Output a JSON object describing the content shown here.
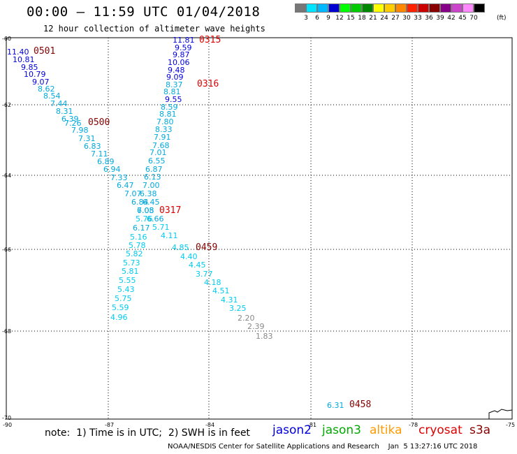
{
  "title": "00:00 – 11:59 UTC 01/04/2018",
  "subtitle": "12 hour collection of altimeter wave heights",
  "color_scale": {
    "colors": [
      "#777777",
      "#00e5ff",
      "#00b8ff",
      "#0000d0",
      "#00ff00",
      "#00cc00",
      "#008800",
      "#ffff00",
      "#ffcc00",
      "#ff8800",
      "#ff2200",
      "#cc0000",
      "#880000",
      "#880088",
      "#cc44cc",
      "#ff88ff",
      "#000000"
    ],
    "labels": [
      "3",
      "6",
      "9",
      "12",
      "15",
      "18",
      "21",
      "24",
      "27",
      "30",
      "33",
      "36",
      "39",
      "42",
      "45",
      "70"
    ],
    "unit": "(ft)"
  },
  "axes": {
    "lat_labels": [
      "-60",
      "-62",
      "-64",
      "-66",
      "-68",
      "-70"
    ],
    "lon_labels": [
      "-90",
      "-87",
      "-84",
      "-81",
      "-78",
      "-75"
    ]
  },
  "note": "note:  1) Time is in UTC;  2) SWH is in feet",
  "legend": [
    {
      "name": "jason2",
      "color": "#0000dd"
    },
    {
      "name": "jason3",
      "color": "#00aa00"
    },
    {
      "name": "altika",
      "color": "#ff9900"
    },
    {
      "name": "cryosat",
      "color": "#dd0000"
    },
    {
      "name": "s3a",
      "color": "#880000"
    }
  ],
  "footer": "NOAA/NESDIS Center for Satellite Applications and Research    Jan  5 13:27:16 UTC 2018",
  "time_labels": [
    {
      "text": "0501",
      "color": "#880000"
    },
    {
      "text": "0500",
      "color": "#880000"
    },
    {
      "text": "0315",
      "color": "#dd0000"
    },
    {
      "text": "0316",
      "color": "#dd0000"
    },
    {
      "text": "0317",
      "color": "#dd0000"
    },
    {
      "text": "0459",
      "color": "#880000"
    },
    {
      "text": "0458",
      "color": "#880000"
    }
  ],
  "observations": [
    {
      "v": "11.40",
      "c": "#0000dd"
    },
    {
      "v": "10.81",
      "c": "#0000dd"
    },
    {
      "v": "9.85",
      "c": "#0000dd"
    },
    {
      "v": "10.79",
      "c": "#0000dd"
    },
    {
      "v": "9.07",
      "c": "#0000dd"
    },
    {
      "v": "8.62",
      "c": "#00aadd"
    },
    {
      "v": "8.54",
      "c": "#00aadd"
    },
    {
      "v": "7.44",
      "c": "#00aadd"
    },
    {
      "v": "8.31",
      "c": "#00aadd"
    },
    {
      "v": "6.39",
      "c": "#00aadd"
    },
    {
      "v": "7.26",
      "c": "#00aadd"
    },
    {
      "v": "7.98",
      "c": "#00aadd"
    },
    {
      "v": "7.31",
      "c": "#00aadd"
    },
    {
      "v": "6.83",
      "c": "#00aadd"
    },
    {
      "v": "7.11",
      "c": "#00aadd"
    },
    {
      "v": "6.89",
      "c": "#00aadd"
    },
    {
      "v": "6.94",
      "c": "#00aadd"
    },
    {
      "v": "7.33",
      "c": "#00aadd"
    },
    {
      "v": "6.47",
      "c": "#00aadd"
    },
    {
      "v": "7.07",
      "c": "#00aadd"
    },
    {
      "v": "6.84",
      "c": "#00aadd"
    },
    {
      "v": "7.05",
      "c": "#00aadd"
    },
    {
      "v": "11.81",
      "c": "#0000dd"
    },
    {
      "v": "9.59",
      "c": "#0000dd"
    },
    {
      "v": "9.87",
      "c": "#0000dd"
    },
    {
      "v": "10.06",
      "c": "#0000dd"
    },
    {
      "v": "9.48",
      "c": "#0000dd"
    },
    {
      "v": "9.09",
      "c": "#0000dd"
    },
    {
      "v": "8.37",
      "c": "#00aadd"
    },
    {
      "v": "8.81",
      "c": "#00aadd"
    },
    {
      "v": "9.55",
      "c": "#0000dd"
    },
    {
      "v": "8.59",
      "c": "#00aadd"
    },
    {
      "v": "8.81",
      "c": "#00aadd"
    },
    {
      "v": "7.80",
      "c": "#00aadd"
    },
    {
      "v": "8.33",
      "c": "#00aadd"
    },
    {
      "v": "7.91",
      "c": "#00aadd"
    },
    {
      "v": "7.68",
      "c": "#00aadd"
    },
    {
      "v": "7.01",
      "c": "#00aadd"
    },
    {
      "v": "6.55",
      "c": "#00aadd"
    },
    {
      "v": "6.87",
      "c": "#00aadd"
    },
    {
      "v": "6.13",
      "c": "#00aadd"
    },
    {
      "v": "7.00",
      "c": "#00aadd"
    },
    {
      "v": "6.38",
      "c": "#00aadd"
    },
    {
      "v": "6.45",
      "c": "#00aadd"
    },
    {
      "v": "6.08",
      "c": "#00aadd"
    },
    {
      "v": "6.66",
      "c": "#00aadd"
    },
    {
      "v": "5.71",
      "c": "#00ccee"
    },
    {
      "v": "4.11",
      "c": "#00ccee"
    },
    {
      "v": "5.76",
      "c": "#00ccee"
    },
    {
      "v": "6.17",
      "c": "#00aadd"
    },
    {
      "v": "5.16",
      "c": "#00ccee"
    },
    {
      "v": "5.78",
      "c": "#00ccee"
    },
    {
      "v": "5.82",
      "c": "#00ccee"
    },
    {
      "v": "5.73",
      "c": "#00ccee"
    },
    {
      "v": "5.81",
      "c": "#00ccee"
    },
    {
      "v": "5.55",
      "c": "#00ccee"
    },
    {
      "v": "5.43",
      "c": "#00ccee"
    },
    {
      "v": "5.75",
      "c": "#00ccee"
    },
    {
      "v": "5.59",
      "c": "#00ccee"
    },
    {
      "v": "4.96",
      "c": "#00ccee"
    },
    {
      "v": "4.85",
      "c": "#00ccee"
    },
    {
      "v": "4.40",
      "c": "#00ccee"
    },
    {
      "v": "4.45",
      "c": "#00ccee"
    },
    {
      "v": "3.77",
      "c": "#00ccee"
    },
    {
      "v": "4.18",
      "c": "#00ccee"
    },
    {
      "v": "4.51",
      "c": "#00ccee"
    },
    {
      "v": "4.31",
      "c": "#00ccee"
    },
    {
      "v": "3.25",
      "c": "#00ccee"
    },
    {
      "v": "2.20",
      "c": "#888888"
    },
    {
      "v": "2.39",
      "c": "#888888"
    },
    {
      "v": "1.83",
      "c": "#888888"
    },
    {
      "v": "6.31",
      "c": "#00aadd"
    }
  ]
}
